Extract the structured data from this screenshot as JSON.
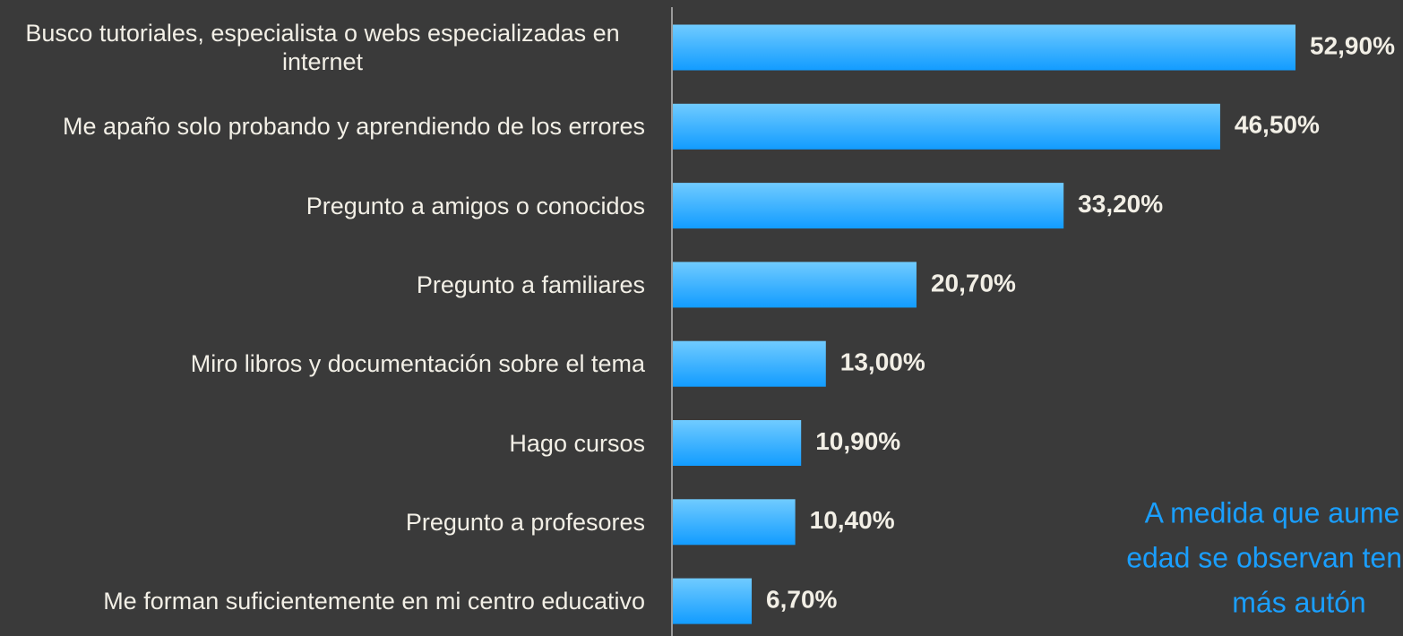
{
  "chart_data": {
    "type": "bar",
    "orientation": "horizontal",
    "categories": [
      "Busco tutoriales, especialista o webs especializadas en internet",
      "Me apaño solo probando y aprendiendo de los errores",
      "Pregunto a amigos o conocidos",
      "Pregunto a familiares",
      "Miro libros y documentación sobre el tema",
      "Hago cursos",
      "Pregunto a profesores",
      "Me forman suficientemente en mi centro educativo"
    ],
    "values": [
      52.9,
      46.5,
      33.2,
      20.7,
      13.0,
      10.9,
      10.4,
      6.7
    ],
    "value_labels": [
      "52,90%",
      "46,50%",
      "33,20%",
      "20,70%",
      "13,00%",
      "10,90%",
      "10,40%",
      "6,70%"
    ],
    "color": "#2aa8ff",
    "annotation": [
      "A medida que aume",
      "edad se observan tend",
      "más autón"
    ]
  }
}
